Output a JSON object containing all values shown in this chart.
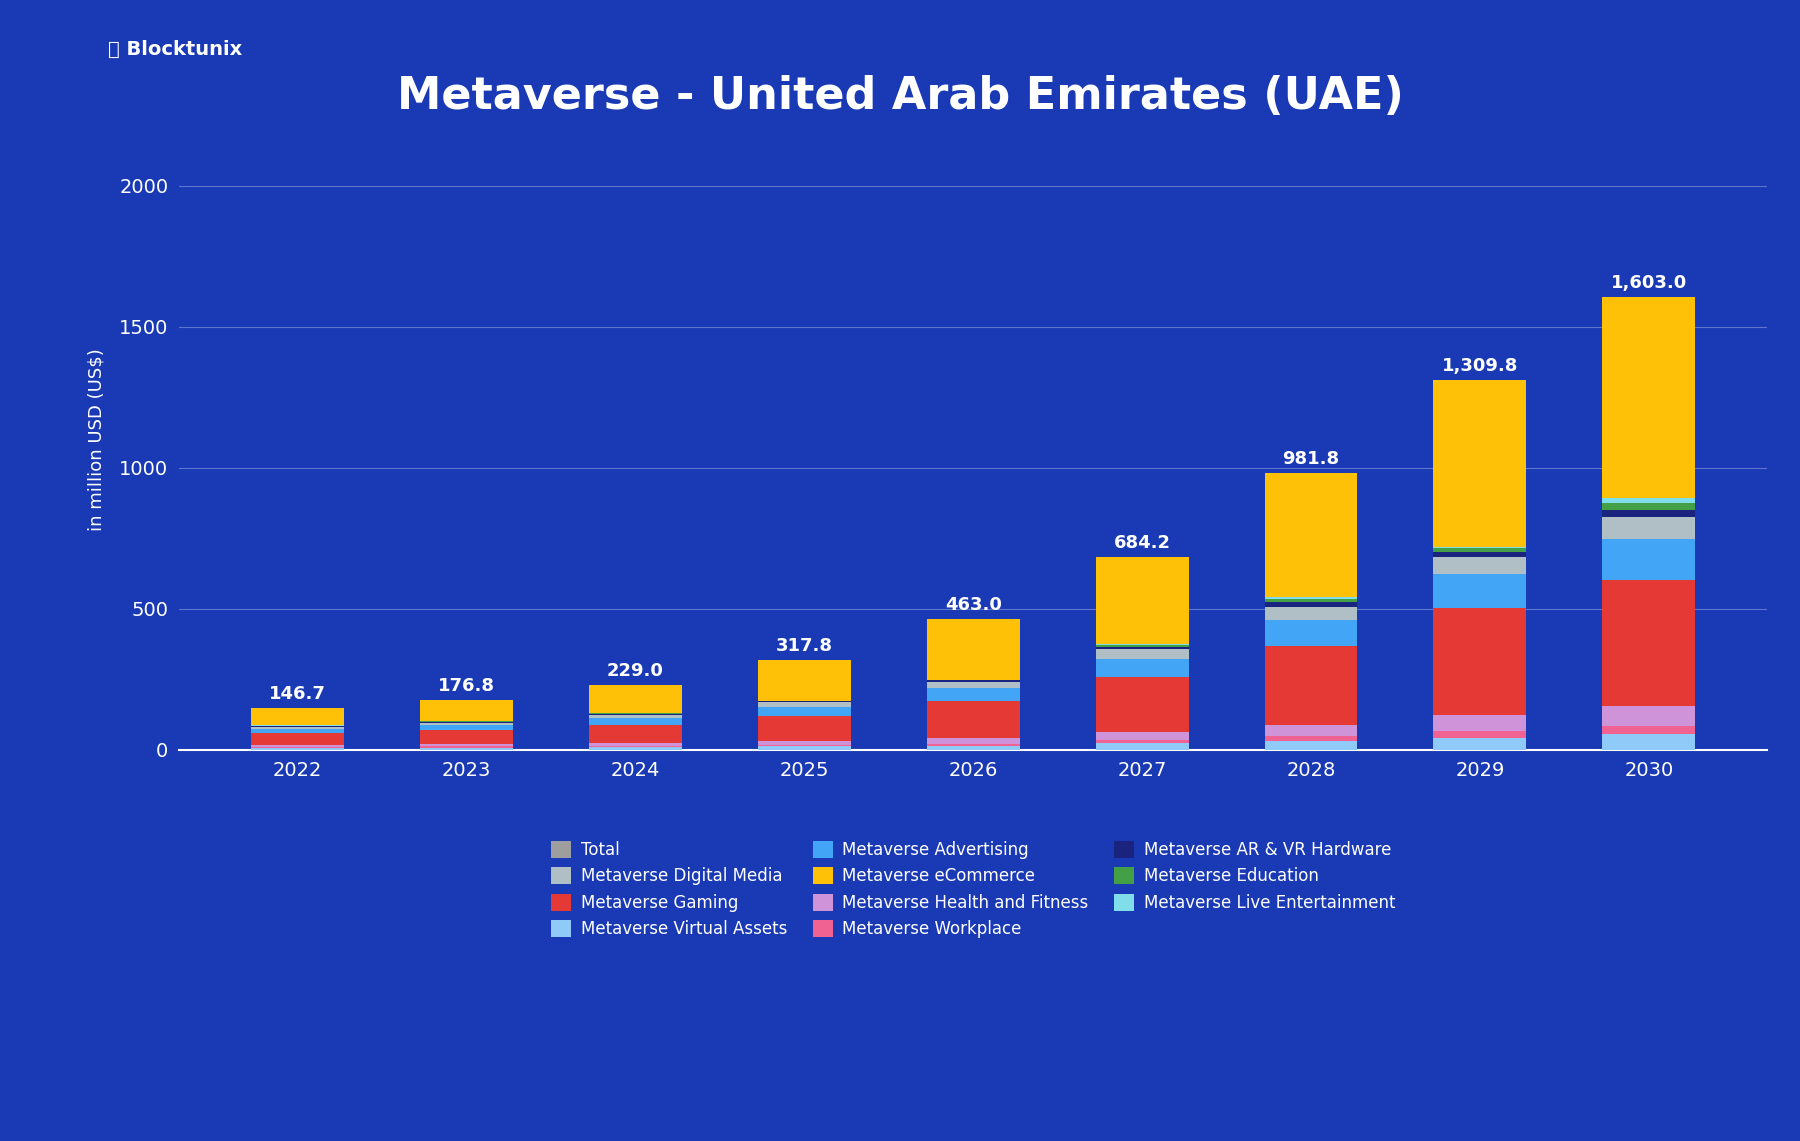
{
  "title": "Metaverse - United Arab Emirates (UAE)",
  "ylabel": "in million USD (US$)",
  "years": [
    2022,
    2023,
    2024,
    2025,
    2026,
    2027,
    2028,
    2029,
    2030
  ],
  "totals": [
    146.7,
    176.8,
    229.0,
    317.8,
    463.0,
    684.2,
    981.8,
    1309.8,
    1603.0
  ],
  "segments": {
    "Metaverse eCommerce": [
      60,
      75,
      100,
      145,
      215,
      310,
      440,
      590,
      710
    ],
    "Metaverse Gaming": [
      40,
      48,
      65,
      90,
      130,
      195,
      280,
      380,
      450
    ],
    "Metaverse Advertising": [
      15,
      18,
      24,
      32,
      47,
      65,
      90,
      120,
      145
    ],
    "Metaverse Digital Media": [
      8,
      9,
      12,
      16,
      22,
      33,
      47,
      62,
      75
    ],
    "Metaverse Health and Fitness": [
      7,
      8,
      11,
      14,
      20,
      28,
      40,
      55,
      68
    ],
    "Metaverse Virtual Assets": [
      6,
      7,
      8,
      11,
      14,
      22,
      30,
      42,
      55
    ],
    "Metaverse Workplace": [
      4,
      5,
      4,
      5,
      7,
      12,
      18,
      24,
      30
    ],
    "Metaverse AR & VR Hardware": [
      3,
      3,
      3,
      3,
      5,
      10,
      18,
      18,
      25
    ],
    "Metaverse Education": [
      2,
      2,
      1,
      1,
      2,
      5,
      12,
      14,
      27
    ],
    "Metaverse Live Entertainment": [
      1.7,
      1.8,
      1,
      0.8,
      1,
      4.2,
      6.8,
      4.8,
      18
    ]
  },
  "colors": {
    "Metaverse eCommerce": "#FFC107",
    "Metaverse Gaming": "#E53935",
    "Metaverse Advertising": "#42A5F5",
    "Metaverse Digital Media": "#B0BEC5",
    "Metaverse Health and Fitness": "#CE93D8",
    "Metaverse Virtual Assets": "#90CAF9",
    "Metaverse Workplace": "#F06292",
    "Metaverse AR & VR Hardware": "#1A237E",
    "Metaverse Education": "#43A047",
    "Metaverse Live Entertainment": "#80DEEA"
  },
  "legend_order": [
    "Total",
    "Metaverse Digital Media",
    "Metaverse Gaming",
    "Metaverse Virtual Assets",
    "Metaverse Advertising",
    "Metaverse eCommerce",
    "Metaverse Health and Fitness",
    "Metaverse Workplace",
    "Metaverse AR & VR Hardware",
    "Metaverse Education",
    "Metaverse Live Entertainment"
  ],
  "bg_color": "#1a3ab5",
  "bar_width": 0.55,
  "ylim": [
    0,
    2200
  ],
  "yticks": [
    0,
    500,
    1000,
    1500,
    2000
  ]
}
